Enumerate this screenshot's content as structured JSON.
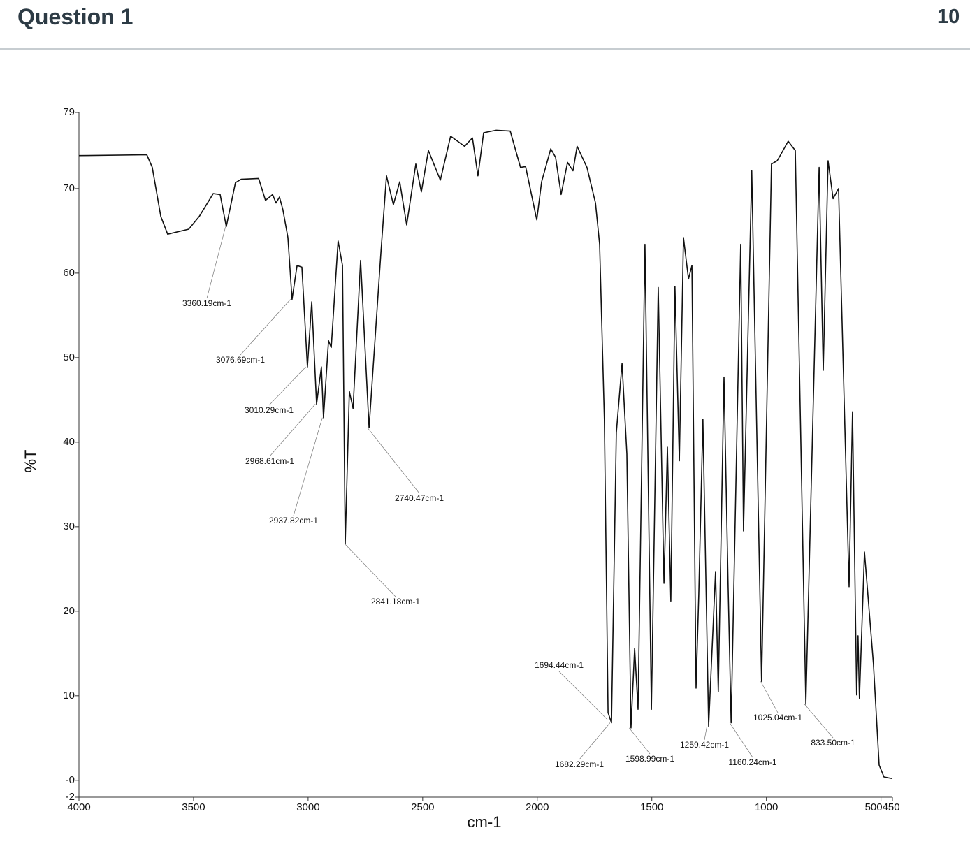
{
  "header": {
    "title": "Question 1",
    "points": "10"
  },
  "chart_data": {
    "type": "line",
    "xlabel": "cm-1",
    "ylabel": "%T",
    "xlim": [
      4000,
      450
    ],
    "ylim": [
      -2,
      79
    ],
    "xticks": [
      4000,
      3500,
      3000,
      2500,
      2000,
      1500,
      1000,
      500,
      450
    ],
    "yticks": [
      79,
      70,
      60,
      50,
      40,
      30,
      20,
      10,
      {
        "value": 0,
        "label": "-0"
      },
      -2
    ],
    "color": "#111111",
    "x": [
      4000,
      3704,
      3680,
      3643,
      3613,
      3521,
      3475,
      3414,
      3384,
      3357,
      3317,
      3292,
      3216,
      3186,
      3155,
      3140,
      3125,
      3110,
      3088,
      3070,
      3048,
      3027,
      3003,
      2984,
      2963,
      2942,
      2933,
      2911,
      2899,
      2869,
      2850,
      2838,
      2820,
      2804,
      2771,
      2734,
      2682,
      2658,
      2628,
      2600,
      2570,
      2530,
      2506,
      2475,
      2423,
      2378,
      2317,
      2283,
      2259,
      2234,
      2179,
      2118,
      2073,
      2051,
      2002,
      1981,
      1941,
      1920,
      1896,
      1868,
      1844,
      1826,
      1783,
      1746,
      1728,
      1707,
      1691,
      1676,
      1655,
      1630,
      1609,
      1591,
      1575,
      1560,
      1530,
      1502,
      1472,
      1447,
      1432,
      1417,
      1399,
      1380,
      1362,
      1340,
      1325,
      1307,
      1295,
      1277,
      1252,
      1222,
      1210,
      1185,
      1167,
      1154,
      1112,
      1100,
      1064,
      1021,
      978,
      953,
      938,
      905,
      874,
      828,
      770,
      752,
      731,
      709,
      685,
      639,
      624,
      606,
      600,
      594,
      572,
      533,
      508,
      487,
      450
    ],
    "values": [
      73.9,
      74.0,
      72.5,
      66.7,
      64.6,
      65.2,
      66.7,
      69.4,
      69.3,
      65.5,
      70.7,
      71.1,
      71.2,
      68.6,
      69.3,
      68.3,
      69,
      67.5,
      64.2,
      56.9,
      60.9,
      60.7,
      48.9,
      56.6,
      44.5,
      48.9,
      42.9,
      52,
      51.2,
      63.8,
      60.9,
      28,
      46,
      44,
      61.5,
      41.7,
      62.6,
      71.5,
      68.1,
      70.8,
      65.7,
      72.9,
      69.6,
      74.5,
      71,
      76.2,
      75,
      76,
      71.5,
      76.6,
      76.9,
      76.8,
      72.5,
      72.6,
      66.3,
      70.8,
      74.7,
      73.7,
      69.3,
      73.1,
      72.1,
      75,
      72.5,
      68.3,
      63.4,
      42.7,
      8,
      6.8,
      41.1,
      49.3,
      38.6,
      6.2,
      15.6,
      8.4,
      63.4,
      8.4,
      58.3,
      23.3,
      39.4,
      21.2,
      58.4,
      37.8,
      64.2,
      59.3,
      60.9,
      10.9,
      22,
      42.7,
      6.4,
      24.7,
      10.5,
      47.7,
      22.9,
      6.8,
      63.4,
      29.5,
      72.1,
      11.7,
      72.9,
      73.3,
      74,
      75.6,
      74.5,
      9,
      72.5,
      48.5,
      73.3,
      68.8,
      70,
      22.9,
      43.6,
      10.1,
      17.1,
      9.7,
      27,
      13.8,
      1.8,
      0.4,
      0.2
    ],
    "annotations": [
      {
        "label": "3360.19cm-1",
        "x": 3360.19,
        "y": 65.5
      },
      {
        "label": "3076.69cm-1",
        "x": 3076.69,
        "y": 56.9
      },
      {
        "label": "3010.29cm-1",
        "x": 3010.29,
        "y": 48.9
      },
      {
        "label": "2968.61cm-1",
        "x": 2968.61,
        "y": 44.5
      },
      {
        "label": "2937.82cm-1",
        "x": 2937.82,
        "y": 42.9
      },
      {
        "label": "2740.47cm-1",
        "x": 2740.47,
        "y": 41.7
      },
      {
        "label": "2841.18cm-1",
        "x": 2841.18,
        "y": 28
      },
      {
        "label": "1694.44cm-1",
        "x": 1694.44,
        "y": 7.2
      },
      {
        "label": "1682.29cm-1",
        "x": 1682.29,
        "y": 6.8
      },
      {
        "label": "1598.99cm-1",
        "x": 1598.99,
        "y": 6.2
      },
      {
        "label": "1259.42cm-1",
        "x": 1259.42,
        "y": 6.4
      },
      {
        "label": "1160.24cm-1",
        "x": 1160.24,
        "y": 6.8
      },
      {
        "label": "1025.04cm-1",
        "x": 1025.04,
        "y": 11.7
      },
      {
        "label": "833.50cm-1",
        "x": 833.5,
        "y": 9
      }
    ]
  }
}
